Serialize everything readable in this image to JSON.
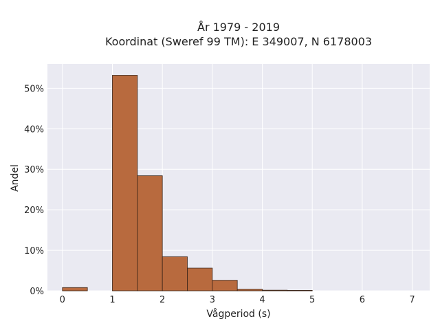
{
  "chart_data": {
    "type": "bar",
    "title": "År 1979 - 2019",
    "subtitle": "Koordinat (Sweref 99 TM): E 349007, N 6178003",
    "xlabel": "Vågperiod (s)",
    "ylabel": "Andel",
    "xlim": [
      -0.3,
      7.35
    ],
    "ylim": [
      0,
      0.56
    ],
    "x_ticks": [
      0,
      1,
      2,
      3,
      4,
      5,
      6,
      7
    ],
    "y_ticks": [
      0,
      0.1,
      0.2,
      0.3,
      0.4,
      0.5
    ],
    "y_tick_labels": [
      "0%",
      "10%",
      "20%",
      "30%",
      "40%",
      "50%"
    ],
    "grid": true,
    "bar_color": "#b86a3e",
    "bar_edge_color": "#3a2418",
    "plot_background": "#eaeaf2",
    "bins": [
      {
        "x0": 0.0,
        "x1": 0.5,
        "value": 0.008
      },
      {
        "x0": 0.5,
        "x1": 1.0,
        "value": 0.0
      },
      {
        "x0": 1.0,
        "x1": 1.5,
        "value": 0.532
      },
      {
        "x0": 1.5,
        "x1": 2.0,
        "value": 0.284
      },
      {
        "x0": 2.0,
        "x1": 2.5,
        "value": 0.084
      },
      {
        "x0": 2.5,
        "x1": 3.0,
        "value": 0.056
      },
      {
        "x0": 3.0,
        "x1": 3.5,
        "value": 0.026
      },
      {
        "x0": 3.5,
        "x1": 4.0,
        "value": 0.004
      },
      {
        "x0": 4.0,
        "x1": 4.5,
        "value": 0.0015
      },
      {
        "x0": 4.5,
        "x1": 5.0,
        "value": 0.001
      }
    ]
  }
}
